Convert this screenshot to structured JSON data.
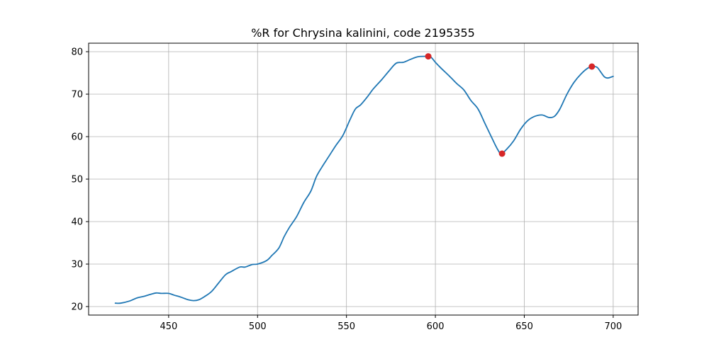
{
  "chart_data": {
    "type": "line",
    "title": "%R for Chrysina kalinini, code 2195355",
    "xlabel": "",
    "ylabel": "",
    "xlim": [
      405,
      714
    ],
    "ylim": [
      18,
      82
    ],
    "xticks": [
      450,
      500,
      550,
      600,
      650,
      700
    ],
    "yticks": [
      20,
      30,
      40,
      50,
      60,
      70,
      80
    ],
    "grid": true,
    "series": [
      {
        "name": "%R",
        "color": "#1f77b4",
        "x": [
          420,
          423,
          428,
          432,
          436,
          440,
          443,
          446,
          450,
          453,
          457,
          461,
          464,
          467,
          470,
          474,
          478,
          482,
          485,
          490,
          493,
          497,
          500,
          505,
          508,
          512,
          515,
          518,
          522,
          526,
          530,
          533,
          536,
          540,
          544,
          548,
          552,
          555,
          558,
          562,
          565,
          570,
          574,
          578,
          582,
          586,
          590,
          594,
          597,
          600,
          603,
          608,
          612,
          616,
          620,
          624,
          628,
          632,
          635,
          637,
          640,
          644,
          648,
          652,
          656,
          660,
          664,
          667,
          670,
          674,
          678,
          682,
          686,
          689,
          691,
          693,
          695,
          697,
          700
        ],
        "y": [
          20.8,
          20.8,
          21.3,
          22.0,
          22.4,
          22.9,
          23.2,
          23.1,
          23.1,
          22.7,
          22.2,
          21.6,
          21.4,
          21.6,
          22.3,
          23.5,
          25.5,
          27.5,
          28.2,
          29.3,
          29.3,
          29.9,
          30.0,
          30.8,
          32.0,
          33.8,
          36.5,
          38.7,
          41.2,
          44.5,
          47.2,
          50.5,
          52.7,
          55.3,
          57.9,
          60.3,
          64.0,
          66.5,
          67.5,
          69.5,
          71.2,
          73.5,
          75.5,
          77.3,
          77.5,
          78.2,
          78.8,
          78.9,
          78.9,
          77.5,
          76.2,
          74.2,
          72.5,
          71.0,
          68.5,
          66.5,
          63.0,
          59.5,
          57.0,
          56.0,
          57.0,
          59.0,
          61.8,
          63.8,
          64.8,
          65.1,
          64.5,
          64.8,
          66.5,
          70.0,
          72.8,
          74.8,
          76.2,
          76.5,
          76.3,
          75.2,
          74.1,
          73.8,
          74.2
        ]
      }
    ],
    "markers": {
      "color": "#d62728",
      "points": [
        {
          "x": 596,
          "y": 78.9
        },
        {
          "x": 637.5,
          "y": 56.0
        },
        {
          "x": 688,
          "y": 76.5
        }
      ]
    }
  }
}
